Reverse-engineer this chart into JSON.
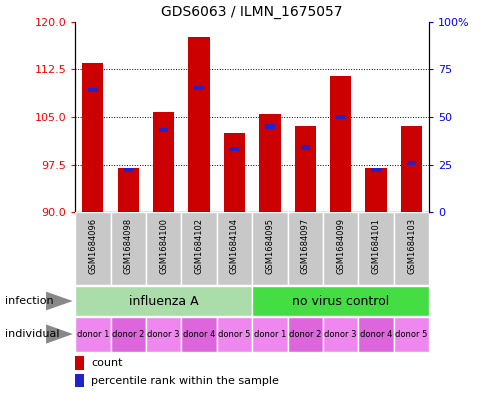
{
  "title": "GDS6063 / ILMN_1675057",
  "samples": [
    "GSM1684096",
    "GSM1684098",
    "GSM1684100",
    "GSM1684102",
    "GSM1684104",
    "GSM1684095",
    "GSM1684097",
    "GSM1684099",
    "GSM1684101",
    "GSM1684103"
  ],
  "count_values": [
    113.5,
    97.0,
    105.8,
    117.5,
    102.5,
    105.5,
    103.5,
    111.5,
    97.0,
    103.5
  ],
  "percentile_values": [
    64,
    22,
    43,
    65,
    33,
    45,
    34,
    50,
    22,
    26
  ],
  "ylim_left": [
    90,
    120
  ],
  "ylim_right": [
    0,
    100
  ],
  "yticks_left": [
    90,
    97.5,
    105,
    112.5,
    120
  ],
  "yticks_right": [
    0,
    25,
    50,
    75,
    100
  ],
  "bar_color": "#cc0000",
  "pct_color": "#2222cc",
  "infection_groups": [
    {
      "label": "influenza A",
      "start": 0,
      "end": 5,
      "color": "#aaddaa"
    },
    {
      "label": "no virus control",
      "start": 5,
      "end": 10,
      "color": "#44dd44"
    }
  ],
  "individual_labels": [
    "donor 1",
    "donor 2",
    "donor 3",
    "donor 4",
    "donor 5",
    "donor 1",
    "donor 2",
    "donor 3",
    "donor 4",
    "donor 5"
  ],
  "ind_colors": [
    "#ee88ee",
    "#dd66dd",
    "#ee88ee",
    "#dd66dd",
    "#ee88ee",
    "#ee88ee",
    "#dd66dd",
    "#ee88ee",
    "#dd66dd",
    "#ee88ee"
  ],
  "header_bg": "#c8c8c8",
  "legend_count_label": "count",
  "legend_pct_label": "percentile rank within the sample",
  "bar_width": 0.6
}
